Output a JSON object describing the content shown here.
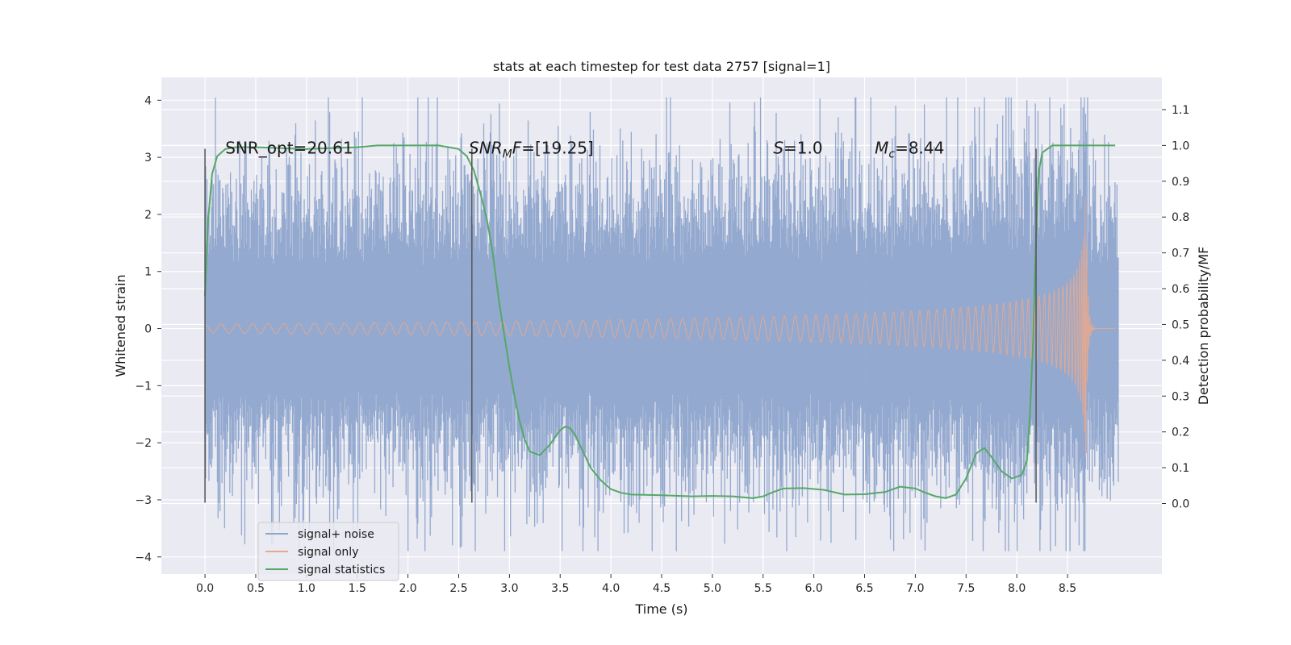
{
  "chart_data": {
    "type": "line",
    "title": "stats at each timestep for test data 2757 [signal=1]",
    "xlabel": "Time (s)",
    "ylabel": "Whitened strain",
    "ylabel_right": "Detection probability/MF",
    "xlim": [
      -0.43,
      9.43
    ],
    "ylim": [
      -4.3,
      4.4
    ],
    "ylim_right": [
      -0.197,
      1.19
    ],
    "x_ticks": [
      0.0,
      0.5,
      1.0,
      1.5,
      2.0,
      2.5,
      3.0,
      3.5,
      4.0,
      4.5,
      5.0,
      5.5,
      6.0,
      6.5,
      7.0,
      7.5,
      8.0,
      8.5
    ],
    "x_tick_labels": [
      "0.0",
      "0.5",
      "1.0",
      "1.5",
      "2.0",
      "2.5",
      "3.0",
      "3.5",
      "4.0",
      "4.5",
      "5.0",
      "5.5",
      "6.0",
      "6.5",
      "7.0",
      "7.5",
      "8.0",
      "8.5"
    ],
    "y_ticks": [
      -4,
      -3,
      -2,
      -1,
      0,
      1,
      2,
      3,
      4
    ],
    "y_tick_labels": [
      "−4",
      "−3",
      "−2",
      "−1",
      "0",
      "1",
      "2",
      "3",
      "4"
    ],
    "y_right_ticks": [
      0.0,
      0.1,
      0.2,
      0.3,
      0.4,
      0.5,
      0.6,
      0.7,
      0.8,
      0.9,
      1.0,
      1.1
    ],
    "y_right_tick_labels": [
      "0.0",
      "0.1",
      "0.2",
      "0.3",
      "0.4",
      "0.5",
      "0.6",
      "0.7",
      "0.8",
      "0.9",
      "1.0",
      "1.1"
    ],
    "grid": true,
    "legend_position": "lower-left",
    "series": [
      {
        "name": "signal+ noise",
        "color": "#8fa5cc",
        "axis": "left",
        "kind": "noise",
        "x_range": [
          0.0,
          9.0
        ],
        "noise_sigma": 1.0
      },
      {
        "name": "signal only",
        "color": "#e5a98f",
        "axis": "left",
        "kind": "chirp",
        "merger_time": 8.68,
        "peak_amplitude": 2.3
      },
      {
        "name": "signal statistics",
        "color": "#55a868",
        "axis": "right",
        "kind": "line",
        "x": [
          0.0,
          0.03,
          0.07,
          0.12,
          0.2,
          0.3,
          0.5,
          1.0,
          1.5,
          1.7,
          2.0,
          2.3,
          2.5,
          2.58,
          2.65,
          2.72,
          2.78,
          2.83,
          2.9,
          2.95,
          3.0,
          3.05,
          3.1,
          3.15,
          3.2,
          3.3,
          3.4,
          3.5,
          3.55,
          3.6,
          3.65,
          3.7,
          3.8,
          3.9,
          4.0,
          4.1,
          4.2,
          4.5,
          4.8,
          5.0,
          5.2,
          5.4,
          5.5,
          5.6,
          5.7,
          5.9,
          6.1,
          6.3,
          6.5,
          6.7,
          6.85,
          7.0,
          7.1,
          7.2,
          7.3,
          7.4,
          7.5,
          7.6,
          7.68,
          7.75,
          7.85,
          7.95,
          8.05,
          8.1,
          8.13,
          8.16,
          8.18,
          8.2,
          8.22,
          8.25,
          8.35,
          8.5,
          8.7,
          8.97
        ],
        "values": [
          0.58,
          0.79,
          0.92,
          0.97,
          0.99,
          0.995,
          0.995,
          0.99,
          0.995,
          1.0,
          1.0,
          1.0,
          0.99,
          0.97,
          0.93,
          0.86,
          0.79,
          0.71,
          0.56,
          0.47,
          0.38,
          0.3,
          0.23,
          0.18,
          0.145,
          0.135,
          0.165,
          0.205,
          0.215,
          0.21,
          0.19,
          0.16,
          0.1,
          0.065,
          0.04,
          0.03,
          0.025,
          0.023,
          0.02,
          0.021,
          0.02,
          0.015,
          0.02,
          0.032,
          0.042,
          0.043,
          0.038,
          0.025,
          0.026,
          0.032,
          0.047,
          0.042,
          0.03,
          0.02,
          0.015,
          0.025,
          0.07,
          0.14,
          0.155,
          0.13,
          0.09,
          0.07,
          0.08,
          0.12,
          0.25,
          0.45,
          0.65,
          0.83,
          0.93,
          0.98,
          1.0,
          1.0,
          1.0,
          1.0
        ]
      }
    ],
    "vlines": [
      {
        "x": 0.0,
        "y_from": -3.05,
        "y_to": 3.15
      },
      {
        "x": 2.63,
        "y_from": -3.05,
        "y_to": 3.15
      },
      {
        "x": 8.19,
        "y_from": -3.05,
        "y_to": 3.15
      }
    ],
    "annotations": [
      {
        "x": 0.2,
        "y": 3.15,
        "prefix": "SNR_opt=",
        "sym": "",
        "sub": "",
        "suffix": "",
        "value": "20.61",
        "italic": false
      },
      {
        "x": 2.6,
        "y": 3.15,
        "prefix": "",
        "sym": "SNR",
        "sub": "M",
        "suffix": "F",
        "value": "[19.25]",
        "italic": true
      },
      {
        "x": 5.6,
        "y": 3.15,
        "prefix": "",
        "sym": "S",
        "sub": "",
        "suffix": "",
        "value": "1.0",
        "italic": true
      },
      {
        "x": 6.6,
        "y": 3.15,
        "prefix": "",
        "sym": "M",
        "sub": "c",
        "suffix": "",
        "value": "8.44",
        "italic": true
      }
    ]
  }
}
